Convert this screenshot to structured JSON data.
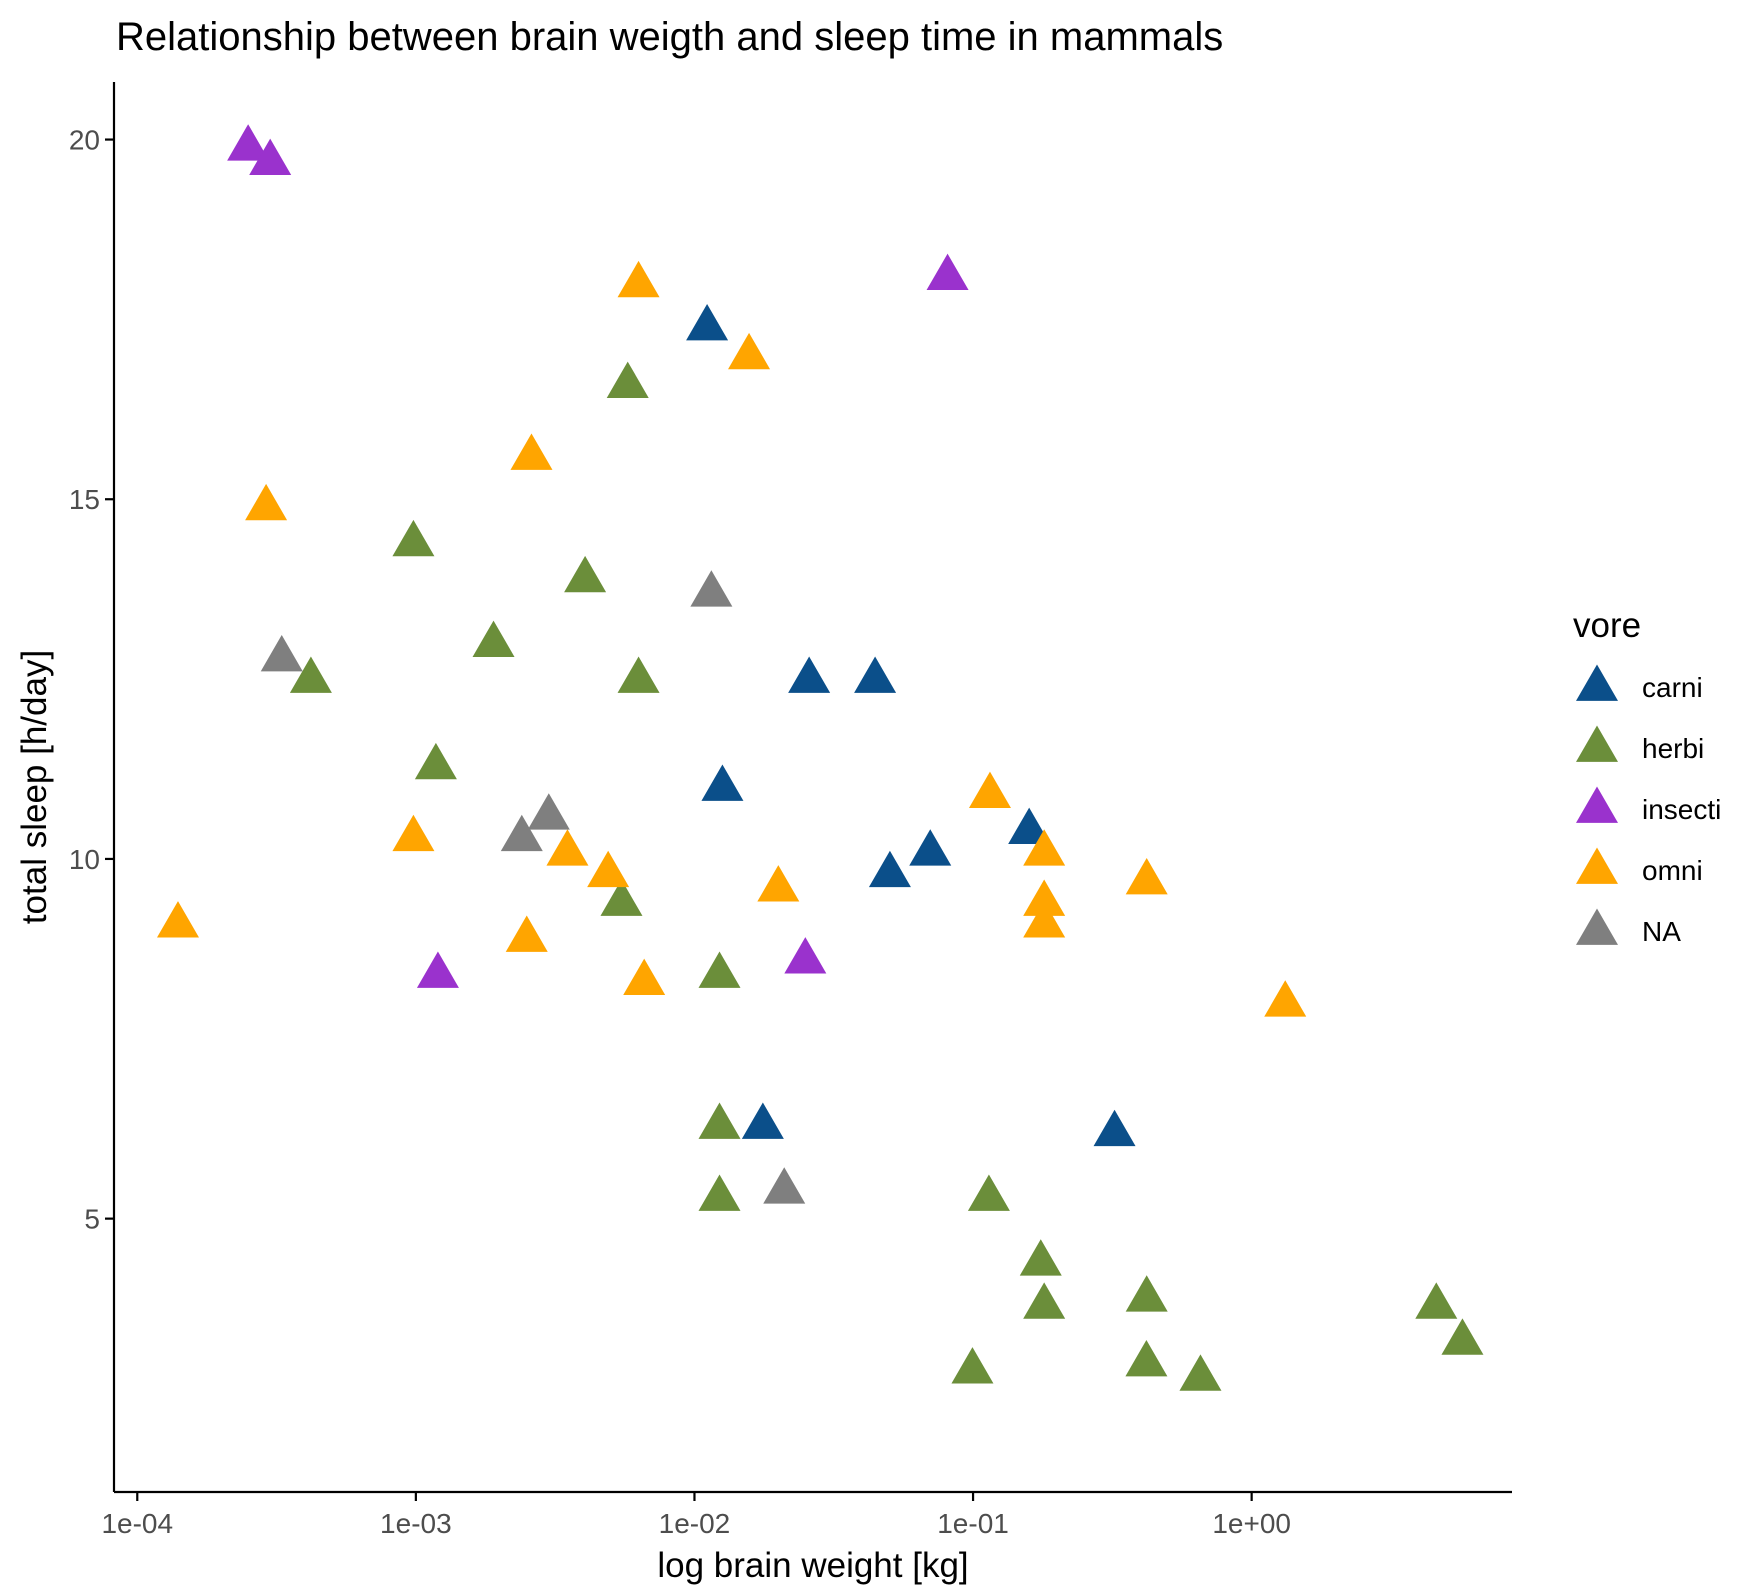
{
  "chart_data": {
    "type": "scatter",
    "title": "Relationship between brain weigth and sleep time in mammals",
    "xlabel": "log brain weight [kg]",
    "ylabel": "total sleep [h/day]",
    "xscale": "log10",
    "xlim": [
      8.25e-05,
      8.6
    ],
    "ylim": [
      1.2,
      20.8
    ],
    "xticks": [
      0.0001,
      0.001,
      0.01,
      0.1,
      1
    ],
    "xtick_labels": [
      "1e-04",
      "1e-03",
      "1e-02",
      "1e-01",
      "1e+00"
    ],
    "yticks": [
      5,
      10,
      15,
      20
    ],
    "ytick_labels": [
      "5",
      "10",
      "15",
      "20"
    ],
    "grid": false,
    "legend": {
      "title": "vore",
      "placement": "right"
    },
    "marker": "triangle",
    "series": [
      {
        "name": "carni",
        "color": "#0b4f8a",
        "points": [
          [
            0.0111,
            17.4
          ],
          [
            0.0258,
            12.5
          ],
          [
            0.0445,
            12.5
          ],
          [
            0.0126,
            11.0
          ],
          [
            0.159,
            10.4
          ],
          [
            0.0702,
            10.1
          ],
          [
            0.0503,
            9.8
          ],
          [
            0.0176,
            6.3
          ],
          [
            0.322,
            6.2
          ]
        ]
      },
      {
        "name": "herbi",
        "color": "#6b8e3a",
        "points": [
          [
            0.00576,
            16.6
          ],
          [
            0.00098,
            14.4
          ],
          [
            0.00405,
            13.9
          ],
          [
            0.0019,
            13.0
          ],
          [
            0.00042,
            12.5
          ],
          [
            0.0063,
            12.5
          ],
          [
            0.00118,
            11.3
          ],
          [
            0.00547,
            9.4
          ],
          [
            0.0123,
            8.4
          ],
          [
            0.0123,
            6.3
          ],
          [
            0.0123,
            5.3
          ],
          [
            0.114,
            5.3
          ],
          [
            0.175,
            4.4
          ],
          [
            0.42,
            3.9
          ],
          [
            0.18,
            3.8
          ],
          [
            4.6,
            3.8
          ],
          [
            0.419,
            3.0
          ],
          [
            0.0995,
            2.9
          ],
          [
            5.71,
            3.3
          ],
          [
            0.655,
            2.8
          ]
        ]
      },
      {
        "name": "insecti",
        "color": "#9a32cd",
        "points": [
          [
            0.00025,
            19.9
          ],
          [
            0.0003,
            19.7
          ],
          [
            0.081,
            18.1
          ],
          [
            0.0012,
            8.4
          ],
          [
            0.025,
            8.6
          ]
        ]
      },
      {
        "name": "omni",
        "color": "#ffa500",
        "points": [
          [
            0.0063,
            18.0
          ],
          [
            0.0157,
            17.0
          ],
          [
            0.0026,
            15.6
          ],
          [
            0.00029,
            14.9
          ],
          [
            0.00098,
            10.3
          ],
          [
            0.0035,
            10.1
          ],
          [
            0.0049,
            9.8
          ],
          [
            0.02,
            9.6
          ],
          [
            0.115,
            10.9
          ],
          [
            0.18,
            10.1
          ],
          [
            0.18,
            9.4
          ],
          [
            0.18,
            9.1
          ],
          [
            0.42,
            9.7
          ],
          [
            0.00014,
            9.1
          ],
          [
            0.0025,
            8.9
          ],
          [
            0.0066,
            8.3
          ],
          [
            1.32,
            8.0
          ]
        ]
      },
      {
        "name": "NA",
        "color": "#7f7f7f",
        "points": [
          [
            0.00033,
            12.8
          ],
          [
            0.0115,
            13.7
          ],
          [
            0.003,
            10.6
          ],
          [
            0.0024,
            10.3
          ],
          [
            0.021,
            5.4
          ]
        ]
      }
    ]
  }
}
